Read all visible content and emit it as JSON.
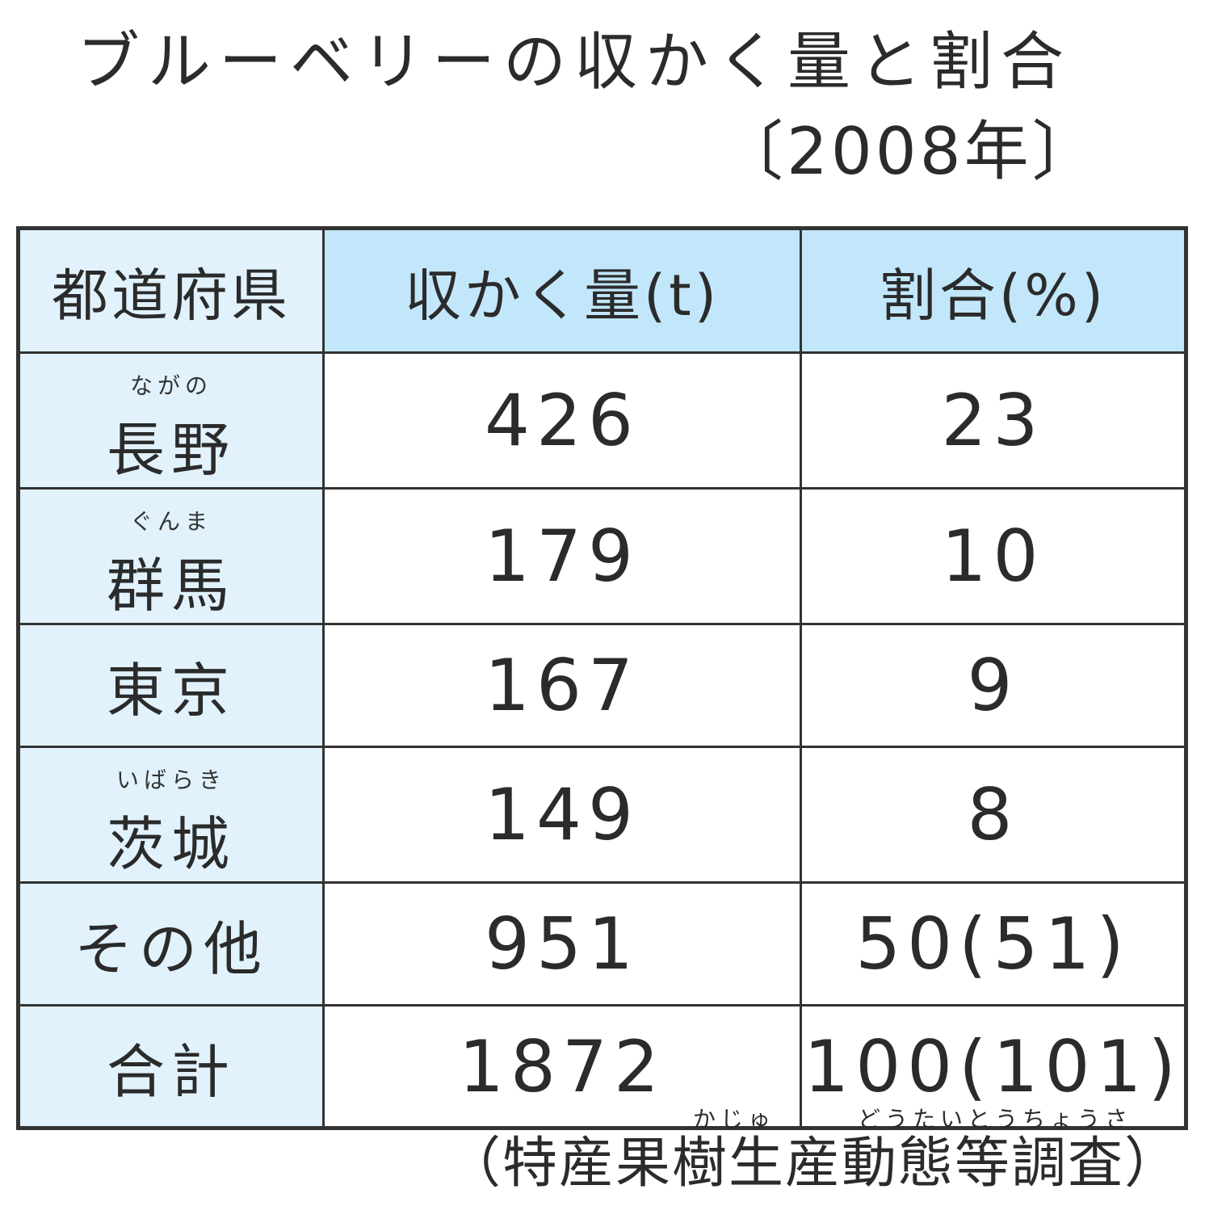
{
  "chart_data": {
    "type": "table",
    "title": "ブルーベリーの収かく量と割合",
    "subtitle": "〔2008年〕",
    "columns": [
      "都道府県",
      "収かく量(t)",
      "割合(%)"
    ],
    "rows": [
      {
        "prefecture": "長野",
        "reading": "ながの",
        "harvest": "426",
        "share": "23"
      },
      {
        "prefecture": "群馬",
        "reading": "ぐんま",
        "harvest": "179",
        "share": "10"
      },
      {
        "prefecture": "東京",
        "reading": "",
        "harvest": "167",
        "share": "9"
      },
      {
        "prefecture": "茨城",
        "reading": "いばらき",
        "harvest": "149",
        "share": "8"
      },
      {
        "prefecture": "その他",
        "reading": "",
        "harvest": "951",
        "share": "50(51)"
      },
      {
        "prefecture": "合計",
        "reading": "",
        "harvest": "1872",
        "share": "100(101)"
      }
    ],
    "source": "（特産果樹生産動態等調査）",
    "source_reading": "かじゅ　　　どうたいとうちょうさ"
  }
}
